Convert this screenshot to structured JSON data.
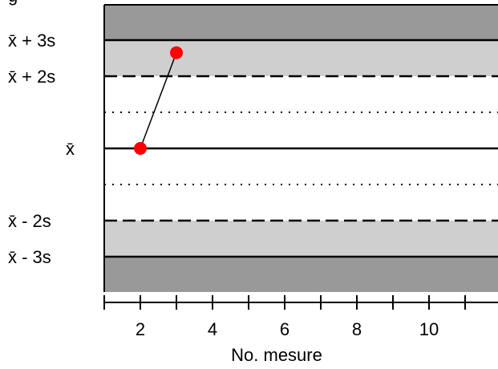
{
  "chart_data": {
    "type": "scatter",
    "title": "",
    "xlabel": "No. mesure",
    "ylabel": "",
    "xlim": [
      1,
      11.9
    ],
    "ylim": [
      -4.5,
      4.5
    ],
    "x_ticks": [
      1,
      2,
      3,
      4,
      5,
      6,
      7,
      8,
      9,
      10,
      11
    ],
    "x_tick_labels": [
      {
        "x": 2,
        "text": "2"
      },
      {
        "x": 4,
        "text": "4"
      },
      {
        "x": 6,
        "text": "6"
      },
      {
        "x": 8,
        "text": "8"
      },
      {
        "x": 10,
        "text": "10"
      }
    ],
    "control_bands": [
      {
        "from": 3,
        "to": 4.5,
        "color": "#999999"
      },
      {
        "from": 2,
        "to": 3,
        "color": "#cfcfcf"
      },
      {
        "from": -3,
        "to": -2,
        "color": "#cfcfcf"
      },
      {
        "from": -4.5,
        "to": -3,
        "color": "#999999"
      }
    ],
    "control_lines": [
      {
        "y": 3,
        "style": "solid",
        "label": "x̄ + 3s"
      },
      {
        "y": 2,
        "style": "dashed",
        "label": "x̄ + 2s"
      },
      {
        "y": 1,
        "style": "dotted",
        "label": ""
      },
      {
        "y": 0,
        "style": "solid",
        "label": "x̄"
      },
      {
        "y": -1,
        "style": "dotted",
        "label": ""
      },
      {
        "y": -2,
        "style": "dashed",
        "label": "x̄ - 2s"
      },
      {
        "y": -3,
        "style": "solid",
        "label": "x̄ - 3s"
      }
    ],
    "series": [
      {
        "x": [
          2,
          3
        ],
        "y": [
          0,
          2.65
        ],
        "color": "#ff0000",
        "line_color": "#000000"
      }
    ]
  }
}
